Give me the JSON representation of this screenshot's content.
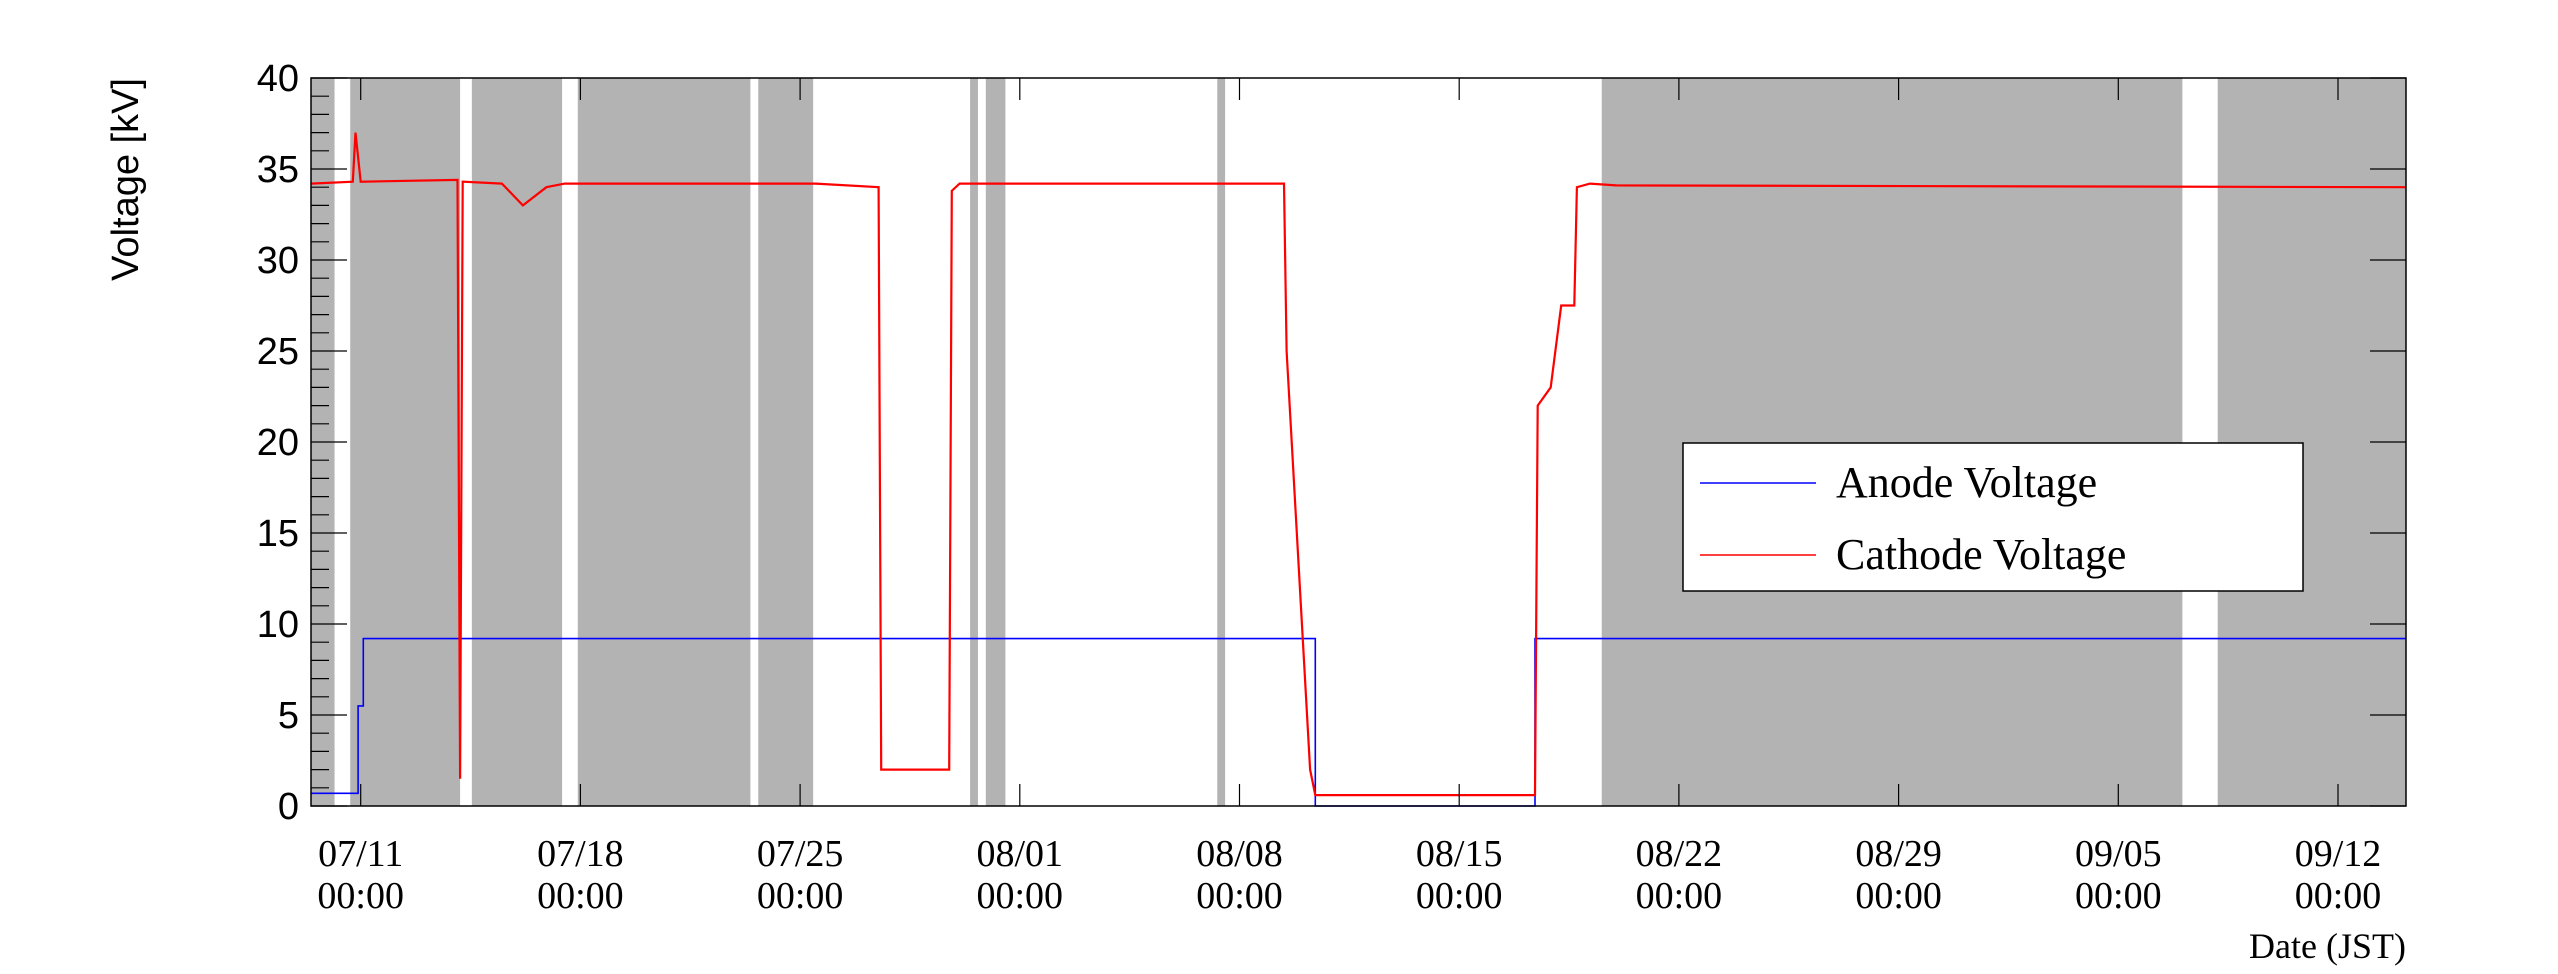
{
  "chart_data": {
    "type": "line",
    "ylabel": "Voltage [kV]",
    "xlabel": "Date (JST)",
    "ylim": [
      0,
      40
    ],
    "xlim": [
      "2024-07-09 10:00",
      "2024-09-14 04:00"
    ],
    "yticks": [
      0,
      5,
      10,
      15,
      20,
      25,
      30,
      35,
      40
    ],
    "yticklabels": [
      "0",
      "5",
      "10",
      "15",
      "20",
      "25",
      "30",
      "35",
      "40"
    ],
    "xticks": [
      {
        "date": "2024-07-11 00:00",
        "label1": "07/11",
        "label2": "00:00"
      },
      {
        "date": "2024-07-18 00:00",
        "label1": "07/18",
        "label2": "00:00"
      },
      {
        "date": "2024-07-25 00:00",
        "label1": "07/25",
        "label2": "00:00"
      },
      {
        "date": "2024-08-01 00:00",
        "label1": "08/01",
        "label2": "00:00"
      },
      {
        "date": "2024-08-08 00:00",
        "label1": "08/08",
        "label2": "00:00"
      },
      {
        "date": "2024-08-15 00:00",
        "label1": "08/15",
        "label2": "00:00"
      },
      {
        "date": "2024-08-22 00:00",
        "label1": "08/22",
        "label2": "00:00"
      },
      {
        "date": "2024-08-29 00:00",
        "label1": "08/29",
        "label2": "00:00"
      },
      {
        "date": "2024-09-05 00:00",
        "label1": "09/05",
        "label2": "00:00"
      },
      {
        "date": "2024-09-12 00:00",
        "label1": "09/12",
        "label2": "00:00"
      }
    ],
    "shaded_periods": [
      [
        "2024-07-09 10:00",
        "2024-07-10 04:00"
      ],
      [
        "2024-07-10 16:00",
        "2024-07-14 04:00"
      ],
      [
        "2024-07-14 13:00",
        "2024-07-17 10:00"
      ],
      [
        "2024-07-17 22:00",
        "2024-07-23 10:00"
      ],
      [
        "2024-07-23 16:00",
        "2024-07-25 10:00"
      ],
      [
        "2024-07-30 10:00",
        "2024-07-30 16:00"
      ],
      [
        "2024-07-30 22:00",
        "2024-07-31 13:00"
      ],
      [
        "2024-08-07 07:00",
        "2024-08-07 13:00"
      ],
      [
        "2024-08-19 13:00",
        "2024-09-07 01:00"
      ],
      [
        "2024-09-08 04:00",
        "2024-09-14 04:00"
      ]
    ],
    "legend": {
      "placement": "right"
    },
    "series": [
      {
        "name": "Anode Voltage",
        "color": "#0000ff",
        "x": [
          "2024-07-09 10:00",
          "2024-07-10 22:00",
          "2024-07-10 22:00",
          "2024-07-11 02:00",
          "2024-07-11 02:00",
          "2024-08-10 10:00",
          "2024-08-10 10:00",
          "2024-08-17 10:00",
          "2024-08-17 10:00",
          "2024-09-14 04:00"
        ],
        "y": [
          0.7,
          0.7,
          5.5,
          5.5,
          9.2,
          9.2,
          0,
          0,
          9.2,
          9.2
        ]
      },
      {
        "name": "Cathode Voltage",
        "color": "#ff0000",
        "x": [
          "2024-07-09 10:00",
          "2024-07-10 18:00",
          "2024-07-10 20:00",
          "2024-07-11 00:00",
          "2024-07-14 02:00",
          "2024-07-14 04:00",
          "2024-07-14 06:00",
          "2024-07-15 12:00",
          "2024-07-16 04:00",
          "2024-07-16 22:00",
          "2024-07-17 12:00",
          "2024-07-25 12:00",
          "2024-07-27 12:00",
          "2024-07-27 14:00",
          "2024-07-27 16:00",
          "2024-07-29 18:00",
          "2024-07-29 20:00",
          "2024-07-30 02:00",
          "2024-08-09 10:00",
          "2024-08-09 12:00",
          "2024-08-10 06:00",
          "2024-08-10 10:00",
          "2024-08-17 06:00",
          "2024-08-17 10:00",
          "2024-08-17 12:00",
          "2024-08-17 22:00",
          "2024-08-18 06:00",
          "2024-08-18 16:00",
          "2024-08-18 18:00",
          "2024-08-19 04:00",
          "2024-08-20 00:00",
          "2024-09-14 04:00"
        ],
        "y": [
          34.2,
          34.3,
          37.0,
          34.3,
          34.4,
          1.5,
          34.3,
          34.2,
          33.0,
          34.0,
          34.2,
          34.2,
          34.0,
          2.0,
          2.0,
          2.0,
          33.8,
          34.2,
          34.2,
          25.0,
          2.0,
          0.6,
          0.6,
          0.6,
          22.0,
          23.0,
          27.5,
          27.5,
          34.0,
          34.2,
          34.1,
          34.0
        ]
      }
    ]
  }
}
